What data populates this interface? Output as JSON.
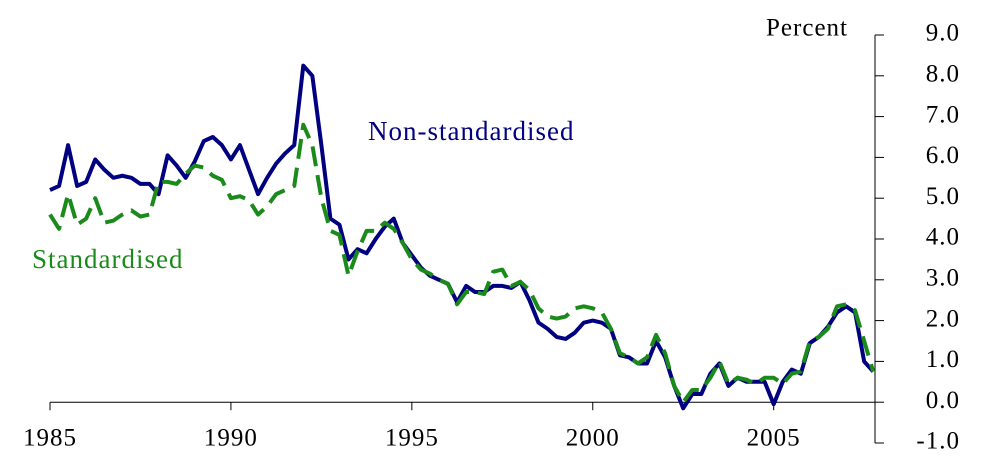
{
  "chart_data": {
    "type": "line",
    "y_axis_label": "Percent",
    "x": [
      1985,
      1985.25,
      1985.5,
      1985.75,
      1986,
      1986.25,
      1986.5,
      1986.75,
      1987,
      1987.25,
      1987.5,
      1987.75,
      1988,
      1988.25,
      1988.5,
      1988.75,
      1989,
      1989.25,
      1989.5,
      1989.75,
      1990,
      1990.25,
      1990.5,
      1990.75,
      1991,
      1991.25,
      1991.5,
      1991.75,
      1992,
      1992.25,
      1992.5,
      1992.75,
      1993,
      1993.25,
      1993.5,
      1993.75,
      1994,
      1994.25,
      1994.5,
      1994.75,
      1995,
      1995.25,
      1995.5,
      1995.75,
      1996,
      1996.25,
      1996.5,
      1996.75,
      1997,
      1997.25,
      1997.5,
      1997.75,
      1998,
      1998.25,
      1998.5,
      1998.75,
      1999,
      1999.25,
      1999.5,
      1999.75,
      2000,
      2000.25,
      2000.5,
      2000.75,
      2001,
      2001.25,
      2001.5,
      2001.75,
      2002,
      2002.25,
      2002.5,
      2002.75,
      2003,
      2003.25,
      2003.5,
      2003.75,
      2004,
      2004.25,
      2004.5,
      2004.75,
      2005,
      2005.25,
      2005.5,
      2005.75,
      2006,
      2006.25,
      2006.5,
      2006.75,
      2007,
      2007.25,
      2007.5,
      2007.75
    ],
    "series": [
      {
        "name": "Non-standardised",
        "color": "#000080",
        "dashed": false,
        "values": [
          5.2,
          5.3,
          6.3,
          5.3,
          5.4,
          5.95,
          5.7,
          5.5,
          5.55,
          5.5,
          5.35,
          5.35,
          5.1,
          6.05,
          5.8,
          5.5,
          5.9,
          6.4,
          6.5,
          6.3,
          5.95,
          6.3,
          5.7,
          5.1,
          5.5,
          5.85,
          6.1,
          6.3,
          8.25,
          8.0,
          6.3,
          4.5,
          4.35,
          3.5,
          3.75,
          3.65,
          4.0,
          4.3,
          4.5,
          3.9,
          3.6,
          3.3,
          3.1,
          3.0,
          2.9,
          2.45,
          2.85,
          2.7,
          2.7,
          2.85,
          2.85,
          2.8,
          2.95,
          2.5,
          1.95,
          1.8,
          1.6,
          1.55,
          1.7,
          1.95,
          2.0,
          1.95,
          1.8,
          1.15,
          1.1,
          0.95,
          0.95,
          1.5,
          1.1,
          0.4,
          -0.15,
          0.2,
          0.2,
          0.7,
          0.95,
          0.4,
          0.6,
          0.5,
          0.5,
          0.5,
          -0.05,
          0.5,
          0.8,
          0.7,
          1.45,
          1.6,
          1.85,
          2.2,
          2.35,
          2.2,
          1.0,
          0.75
        ]
      },
      {
        "name": "Standardised",
        "color": "#1a8a1a",
        "dashed": true,
        "values": [
          4.6,
          4.25,
          5.1,
          4.35,
          4.5,
          5.0,
          4.4,
          4.45,
          4.6,
          4.7,
          4.55,
          4.6,
          5.4,
          5.4,
          5.35,
          5.6,
          5.8,
          5.75,
          5.55,
          5.45,
          5.0,
          5.05,
          4.95,
          4.6,
          4.8,
          5.1,
          5.2,
          5.3,
          6.8,
          6.3,
          5.0,
          4.2,
          4.1,
          3.1,
          3.7,
          4.2,
          4.2,
          4.4,
          4.25,
          3.9,
          3.5,
          3.25,
          3.15,
          3.0,
          2.9,
          2.4,
          2.7,
          2.7,
          2.65,
          3.2,
          3.25,
          2.85,
          2.95,
          2.75,
          2.3,
          2.1,
          2.05,
          2.1,
          2.3,
          2.35,
          2.3,
          2.2,
          1.8,
          1.2,
          1.1,
          0.95,
          1.1,
          1.65,
          1.2,
          0.4,
          0.0,
          0.3,
          0.3,
          0.6,
          1.0,
          0.45,
          0.6,
          0.55,
          0.45,
          0.6,
          0.6,
          0.45,
          0.7,
          0.75,
          1.5,
          1.6,
          1.8,
          2.35,
          2.4,
          2.25,
          1.5,
          0.75
        ]
      }
    ],
    "xlim": [
      1985,
      2007.8
    ],
    "xticks": [
      1985,
      1990,
      1995,
      2000,
      2005
    ],
    "ylim": [
      -1,
      9
    ],
    "yticks": [
      {
        "value": -1,
        "label": "-1.0"
      },
      {
        "value": 0,
        "label": "0.0"
      },
      {
        "value": 1,
        "label": "1.0"
      },
      {
        "value": 2,
        "label": "2.0"
      },
      {
        "value": 3,
        "label": "3.0"
      },
      {
        "value": 4,
        "label": "4.0"
      },
      {
        "value": 5,
        "label": "5.0"
      },
      {
        "value": 6,
        "label": "6.0"
      },
      {
        "value": 7,
        "label": "7.0"
      },
      {
        "value": 8,
        "label": "8.0"
      },
      {
        "value": 9,
        "label": "9.0"
      }
    ]
  }
}
